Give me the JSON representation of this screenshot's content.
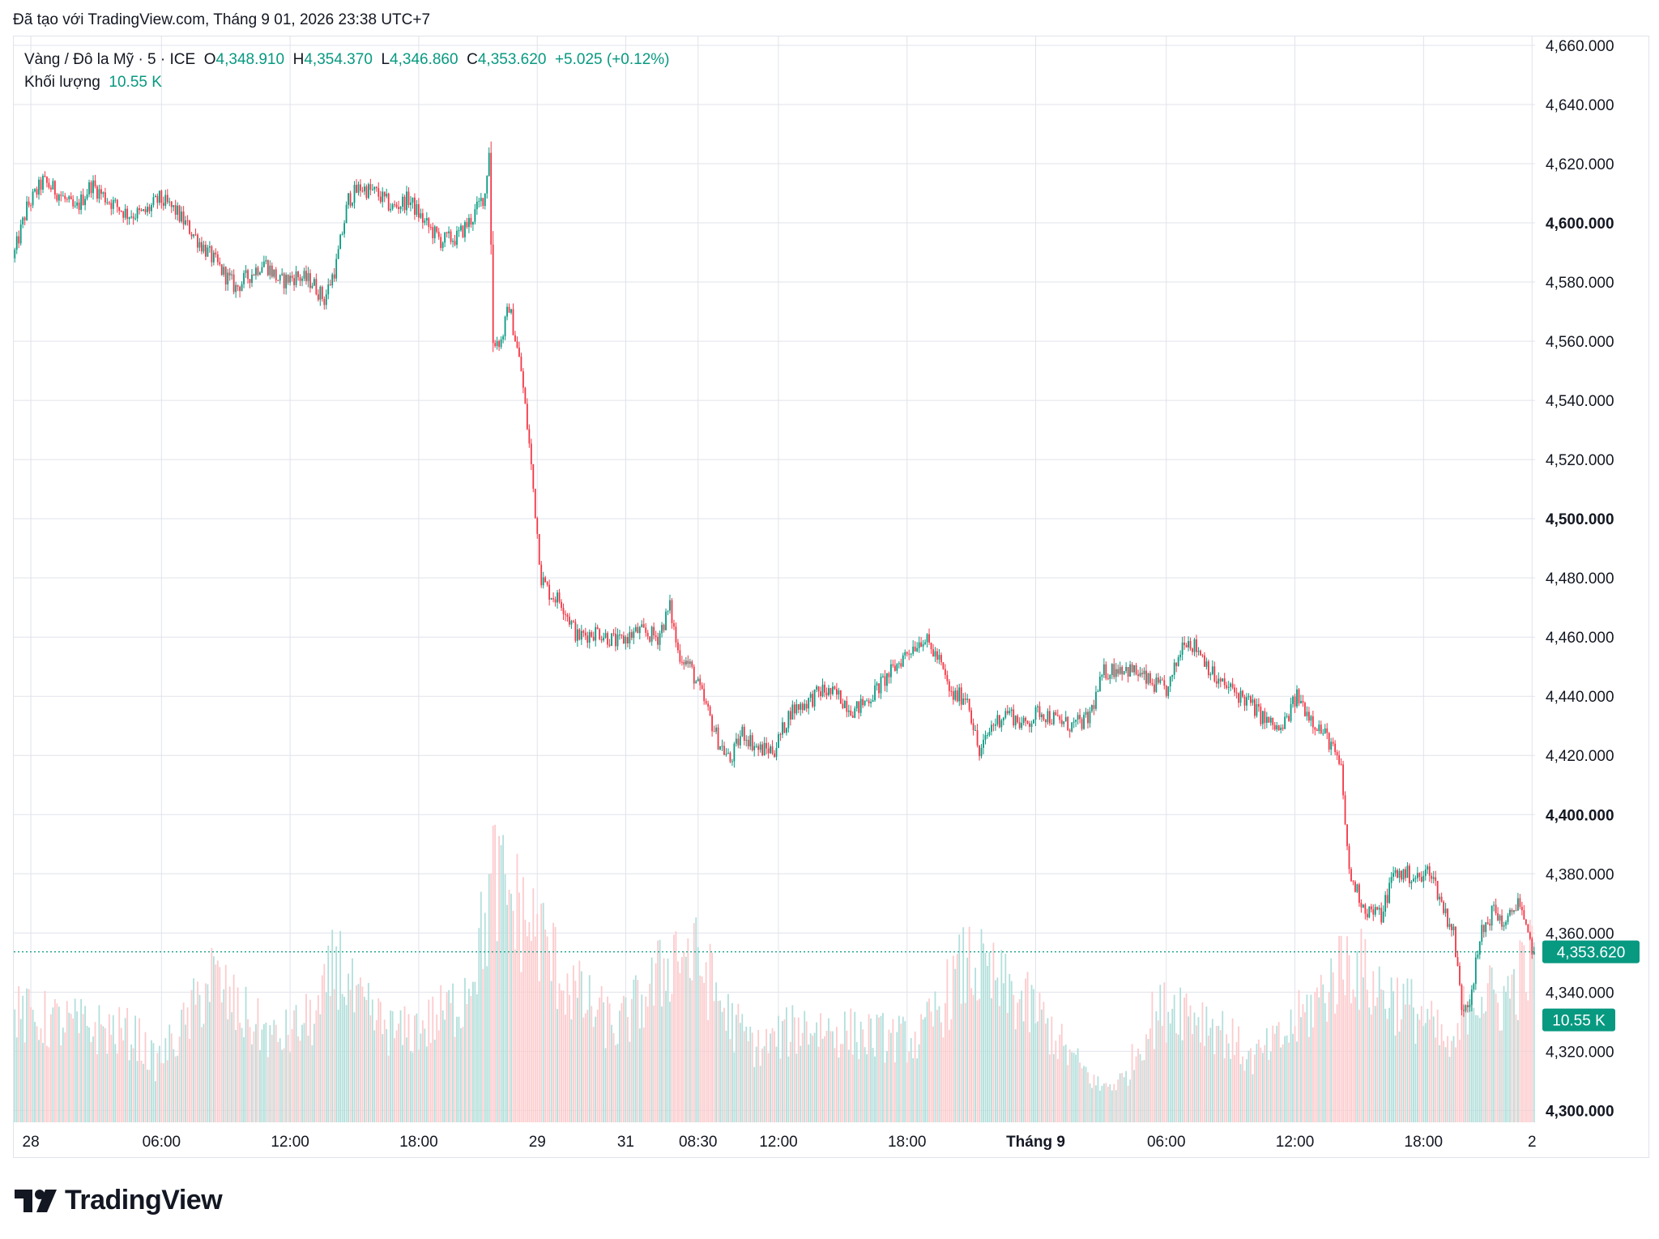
{
  "header": {
    "created_text": "Đã tạo với TradingView.com, Tháng 9 01, 2026 23:38 UTC+7"
  },
  "legend": {
    "symbol": "Vàng / Đô la Mỹ · 5 · ICE",
    "o_label": "O",
    "o_value": "4,348.910",
    "h_label": "H",
    "h_value": "4,354.370",
    "l_label": "L",
    "l_value": "4,346.860",
    "c_label": "C",
    "c_value": "4,353.620",
    "change": "+5.025 (+0.12%)",
    "volume_label": "Khối lượng",
    "volume_value": "10.55 K"
  },
  "footer": {
    "brand": "TradingView",
    "logo_icon": "tradingview-logo-icon"
  },
  "colors": {
    "up": "#089981",
    "down": "#f23645",
    "grid": "#e0e3eb",
    "up_volume": "#b2dfdb",
    "down_volume": "#fccbcd"
  },
  "chart_data": {
    "type": "candlestick",
    "symbol": "XAU/USD",
    "interval_minutes": 5,
    "y_axis": {
      "ylim": [
        4296,
        4663
      ],
      "ticks": [
        "4,300.000",
        "4,320.000",
        "4,340.000",
        "4,360.000",
        "4,380.000",
        "4,400.000",
        "4,420.000",
        "4,440.000",
        "4,460.000",
        "4,480.000",
        "4,500.000",
        "4,520.000",
        "4,540.000",
        "4,560.000",
        "4,580.000",
        "4,600.000",
        "4,620.000",
        "4,640.000",
        "4,660.000"
      ],
      "tick_values": [
        4300,
        4320,
        4340,
        4360,
        4380,
        4400,
        4420,
        4440,
        4460,
        4480,
        4500,
        4520,
        4540,
        4560,
        4580,
        4600,
        4620,
        4640,
        4660
      ],
      "bold_ticks": [
        "4,300.000",
        "4,400.000",
        "4,500.000",
        "4,600.000"
      ]
    },
    "x_axis": {
      "labels": [
        "28",
        "06:00",
        "12:00",
        "18:00",
        "29",
        "31",
        "08:30",
        "12:00",
        "18:00",
        "Tháng 9",
        "06:00",
        "12:00",
        "18:00",
        "2"
      ],
      "bold_labels": [
        "Tháng 9"
      ],
      "label_bar_index": [
        8,
        73,
        137,
        201,
        260,
        304,
        340,
        380,
        444,
        508,
        573,
        637,
        701,
        755
      ]
    },
    "last_price": {
      "value": 4353.62,
      "label": "4,353.620"
    },
    "last_volume": {
      "value": 10.55,
      "label": "10.55 K"
    },
    "path": [
      [
        0,
        4590
      ],
      [
        6,
        4605
      ],
      [
        14,
        4614
      ],
      [
        22,
        4610
      ],
      [
        30,
        4604
      ],
      [
        38,
        4613
      ],
      [
        46,
        4608
      ],
      [
        56,
        4603
      ],
      [
        64,
        4603
      ],
      [
        72,
        4608
      ],
      [
        80,
        4604
      ],
      [
        88,
        4597
      ],
      [
        96,
        4590
      ],
      [
        104,
        4583
      ],
      [
        110,
        4578
      ],
      [
        118,
        4583
      ],
      [
        124,
        4587
      ],
      [
        132,
        4580
      ],
      [
        140,
        4582
      ],
      [
        148,
        4580
      ],
      [
        154,
        4574
      ],
      [
        160,
        4586
      ],
      [
        166,
        4608
      ],
      [
        172,
        4612
      ],
      [
        180,
        4610
      ],
      [
        188,
        4605
      ],
      [
        196,
        4608
      ],
      [
        204,
        4600
      ],
      [
        212,
        4594
      ],
      [
        220,
        4595
      ],
      [
        228,
        4602
      ],
      [
        234,
        4610
      ],
      [
        236,
        4625
      ],
      [
        238,
        4560
      ],
      [
        242,
        4560
      ],
      [
        246,
        4572
      ],
      [
        252,
        4550
      ],
      [
        256,
        4525
      ],
      [
        262,
        4480
      ],
      [
        266,
        4475
      ],
      [
        272,
        4472
      ],
      [
        280,
        4460
      ],
      [
        290,
        4462
      ],
      [
        300,
        4458
      ],
      [
        310,
        4462
      ],
      [
        320,
        4460
      ],
      [
        326,
        4470
      ],
      [
        330,
        4455
      ],
      [
        336,
        4450
      ],
      [
        342,
        4440
      ],
      [
        350,
        4425
      ],
      [
        356,
        4418
      ],
      [
        362,
        4428
      ],
      [
        370,
        4422
      ],
      [
        378,
        4422
      ],
      [
        386,
        4435
      ],
      [
        394,
        4438
      ],
      [
        402,
        4442
      ],
      [
        410,
        4440
      ],
      [
        418,
        4435
      ],
      [
        426,
        4440
      ],
      [
        436,
        4448
      ],
      [
        444,
        4455
      ],
      [
        452,
        4460
      ],
      [
        460,
        4452
      ],
      [
        466,
        4440
      ],
      [
        474,
        4440
      ],
      [
        480,
        4420
      ],
      [
        486,
        4430
      ],
      [
        494,
        4435
      ],
      [
        502,
        4430
      ],
      [
        510,
        4435
      ],
      [
        518,
        4432
      ],
      [
        526,
        4430
      ],
      [
        534,
        4432
      ],
      [
        542,
        4448
      ],
      [
        550,
        4450
      ],
      [
        558,
        4448
      ],
      [
        566,
        4444
      ],
      [
        574,
        4442
      ],
      [
        582,
        4460
      ],
      [
        590,
        4455
      ],
      [
        598,
        4445
      ],
      [
        606,
        4442
      ],
      [
        614,
        4438
      ],
      [
        622,
        4432
      ],
      [
        630,
        4428
      ],
      [
        638,
        4440
      ],
      [
        646,
        4432
      ],
      [
        654,
        4425
      ],
      [
        660,
        4415
      ],
      [
        664,
        4380
      ],
      [
        672,
        4368
      ],
      [
        680,
        4366
      ],
      [
        686,
        4380
      ],
      [
        692,
        4380
      ],
      [
        700,
        4378
      ],
      [
        704,
        4382
      ],
      [
        710,
        4370
      ],
      [
        716,
        4360
      ],
      [
        720,
        4335
      ],
      [
        724,
        4338
      ],
      [
        730,
        4360
      ],
      [
        736,
        4368
      ],
      [
        742,
        4362
      ],
      [
        748,
        4372
      ],
      [
        752,
        4360
      ],
      [
        756,
        4353.62
      ]
    ],
    "volume_profile": [
      [
        0,
        55
      ],
      [
        60,
        45
      ],
      [
        70,
        30
      ],
      [
        85,
        50
      ],
      [
        98,
        75
      ],
      [
        110,
        58
      ],
      [
        130,
        42
      ],
      [
        152,
        56
      ],
      [
        160,
        85
      ],
      [
        170,
        60
      ],
      [
        190,
        45
      ],
      [
        205,
        50
      ],
      [
        222,
        62
      ],
      [
        234,
        100
      ],
      [
        238,
        125
      ],
      [
        250,
        110
      ],
      [
        262,
        95
      ],
      [
        272,
        75
      ],
      [
        285,
        60
      ],
      [
        300,
        48
      ],
      [
        318,
        70
      ],
      [
        330,
        90
      ],
      [
        342,
        80
      ],
      [
        356,
        52
      ],
      [
        370,
        38
      ],
      [
        392,
        50
      ],
      [
        420,
        45
      ],
      [
        450,
        42
      ],
      [
        474,
        82
      ],
      [
        490,
        70
      ],
      [
        510,
        55
      ],
      [
        522,
        38
      ],
      [
        540,
        18
      ],
      [
        552,
        22
      ],
      [
        565,
        52
      ],
      [
        578,
        62
      ],
      [
        600,
        48
      ],
      [
        615,
        32
      ],
      [
        630,
        42
      ],
      [
        650,
        65
      ],
      [
        664,
        85
      ],
      [
        676,
        70
      ],
      [
        700,
        55
      ],
      [
        716,
        35
      ],
      [
        724,
        68
      ],
      [
        740,
        62
      ],
      [
        756,
        85
      ]
    ]
  }
}
